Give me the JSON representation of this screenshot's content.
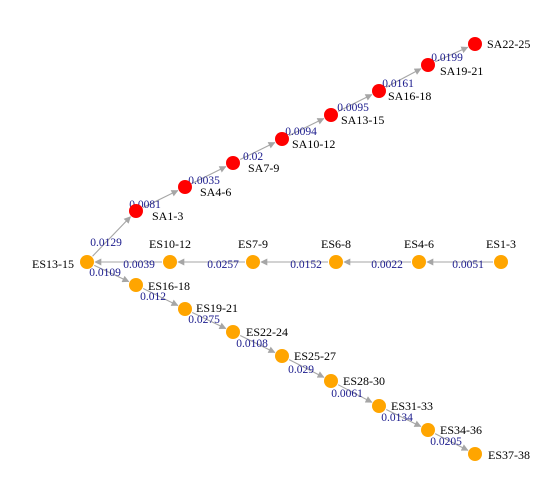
{
  "colors": {
    "SA": "#ff0000",
    "ES": "#ffa500",
    "edge": "#a6a6a6",
    "edge_label": "#1a1a8c",
    "node_label": "#000000",
    "background": "#ffffff"
  },
  "nodes": [
    {
      "id": "SA22-25",
      "label": "SA22-25",
      "group": "SA"
    },
    {
      "id": "SA19-21",
      "label": "SA19-21",
      "group": "SA"
    },
    {
      "id": "SA16-18",
      "label": "SA16-18",
      "group": "SA"
    },
    {
      "id": "SA13-15",
      "label": "SA13-15",
      "group": "SA"
    },
    {
      "id": "SA10-12",
      "label": "SA10-12",
      "group": "SA"
    },
    {
      "id": "SA7-9",
      "label": "SA7-9",
      "group": "SA"
    },
    {
      "id": "SA4-6",
      "label": "SA4-6",
      "group": "SA"
    },
    {
      "id": "SA1-3",
      "label": "SA1-3",
      "group": "SA"
    },
    {
      "id": "ES13-15",
      "label": "ES13-15",
      "group": "ES"
    },
    {
      "id": "ES10-12",
      "label": "ES10-12",
      "group": "ES"
    },
    {
      "id": "ES7-9",
      "label": "ES7-9",
      "group": "ES"
    },
    {
      "id": "ES6-8",
      "label": "ES6-8",
      "group": "ES"
    },
    {
      "id": "ES4-6",
      "label": "ES4-6",
      "group": "ES"
    },
    {
      "id": "ES1-3",
      "label": "ES1-3",
      "group": "ES"
    },
    {
      "id": "ES16-18",
      "label": "ES16-18",
      "group": "ES"
    },
    {
      "id": "ES19-21",
      "label": "ES19-21",
      "group": "ES"
    },
    {
      "id": "ES22-24",
      "label": "ES22-24",
      "group": "ES"
    },
    {
      "id": "ES25-27",
      "label": "ES25-27",
      "group": "ES"
    },
    {
      "id": "ES28-30",
      "label": "ES28-30",
      "group": "ES"
    },
    {
      "id": "ES31-33",
      "label": "ES31-33",
      "group": "ES"
    },
    {
      "id": "ES34-36",
      "label": "ES34-36",
      "group": "ES"
    },
    {
      "id": "ES37-38",
      "label": "ES37-38",
      "group": "ES"
    }
  ],
  "edges": [
    {
      "from": "ES1-3",
      "to": "ES4-6",
      "label": "0.0051"
    },
    {
      "from": "ES4-6",
      "to": "ES6-8",
      "label": "0.0022"
    },
    {
      "from": "ES6-8",
      "to": "ES7-9",
      "label": "0.0152"
    },
    {
      "from": "ES7-9",
      "to": "ES10-12",
      "label": "0.0257"
    },
    {
      "from": "ES10-12",
      "to": "ES13-15",
      "label": "0.0039"
    },
    {
      "from": "ES13-15",
      "to": "SA1-3",
      "label": "0.0129"
    },
    {
      "from": "SA1-3",
      "to": "SA4-6",
      "label": "0.0081"
    },
    {
      "from": "SA4-6",
      "to": "SA7-9",
      "label": "0.0035"
    },
    {
      "from": "SA7-9",
      "to": "SA10-12",
      "label": "0.02"
    },
    {
      "from": "SA10-12",
      "to": "SA13-15",
      "label": "0.0094"
    },
    {
      "from": "SA13-15",
      "to": "SA16-18",
      "label": "0.0095"
    },
    {
      "from": "SA16-18",
      "to": "SA19-21",
      "label": "0.0161"
    },
    {
      "from": "SA19-21",
      "to": "SA22-25",
      "label": "0.0199"
    },
    {
      "from": "ES13-15",
      "to": "ES16-18",
      "label": "0.0109"
    },
    {
      "from": "ES16-18",
      "to": "ES19-21",
      "label": "0.012"
    },
    {
      "from": "ES19-21",
      "to": "ES22-24",
      "label": "0.0275"
    },
    {
      "from": "ES22-24",
      "to": "ES25-27",
      "label": "0.0108"
    },
    {
      "from": "ES25-27",
      "to": "ES28-30",
      "label": "0.029"
    },
    {
      "from": "ES28-30",
      "to": "ES31-33",
      "label": "0.0061"
    },
    {
      "from": "ES31-33",
      "to": "ES34-36",
      "label": "0.0134"
    },
    {
      "from": "ES34-36",
      "to": "ES37-38",
      "label": "0.0205"
    }
  ]
}
